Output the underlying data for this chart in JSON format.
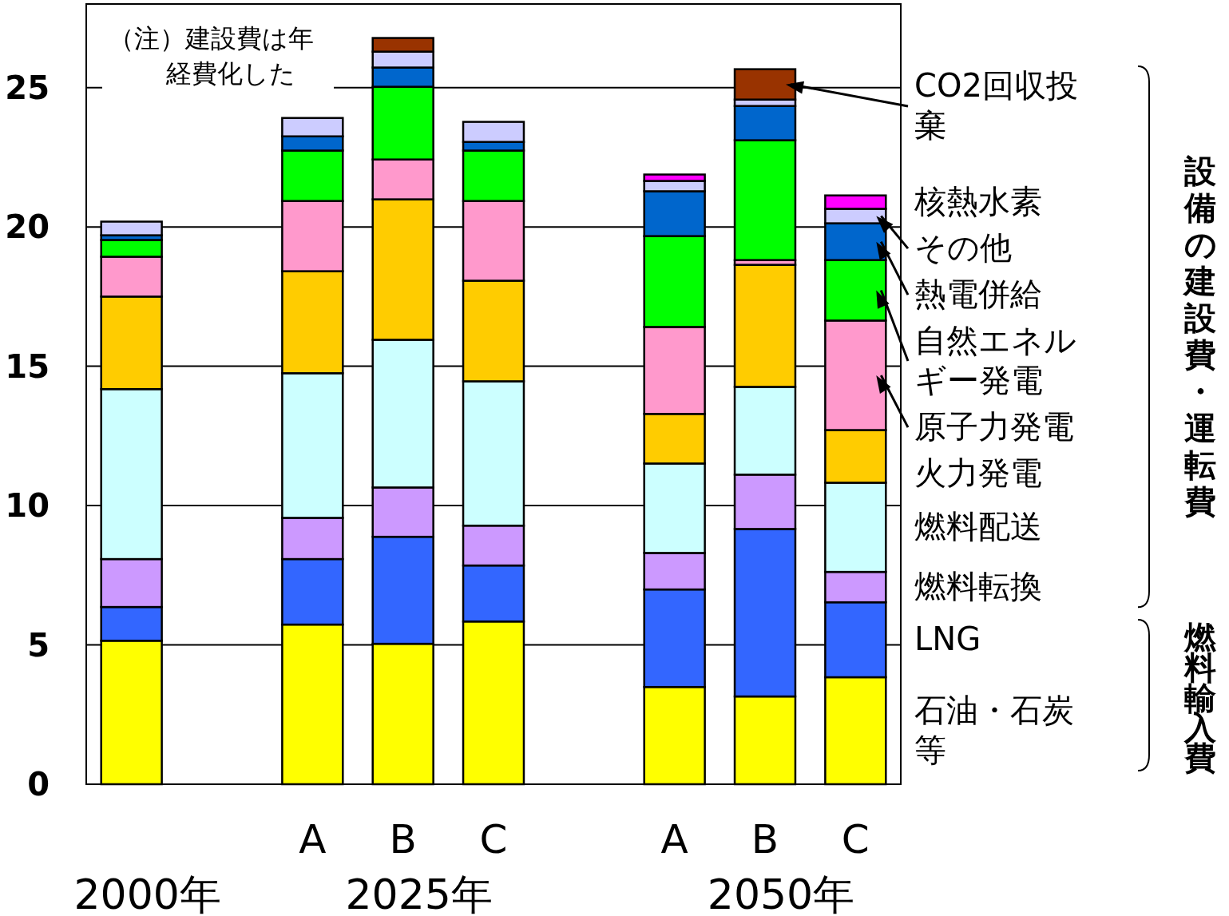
{
  "chart_data": {
    "type": "bar",
    "stacked": true,
    "categories": [
      null,
      null,
      "A",
      "B",
      "C",
      null,
      "A",
      "B",
      "C"
    ],
    "ylim": [
      0,
      28
    ],
    "yticks": [
      0,
      5,
      10,
      15,
      20,
      25
    ],
    "grid": "y",
    "legend": "right",
    "annotations": [
      "2000年",
      "2025年",
      "2050年",
      "（注）建設費は年経費化した",
      "設備の建設費・運転費",
      "燃料輸入費"
    ],
    "series": [
      {
        "name": "石油・石炭等",
        "color": "#ffff00",
        "values": [
          5.15,
          null,
          5.73,
          5.04,
          5.84,
          null,
          3.49,
          3.15,
          3.84
        ]
      },
      {
        "name": "LNG",
        "color": "#3366ff",
        "values": [
          1.21,
          null,
          2.35,
          3.84,
          2.01,
          null,
          3.5,
          6.01,
          2.69
        ]
      },
      {
        "name": "燃料転換",
        "color": "#cc99ff",
        "values": [
          1.72,
          null,
          1.48,
          1.77,
          1.43,
          null,
          1.31,
          1.95,
          1.09
        ]
      },
      {
        "name": "燃料配送",
        "color": "#ccffff",
        "values": [
          6.1,
          null,
          5.19,
          5.3,
          5.18,
          null,
          3.21,
          3.15,
          3.2
        ]
      },
      {
        "name": "火力発電",
        "color": "#ffcc00",
        "values": [
          3.32,
          null,
          3.66,
          5.04,
          3.61,
          null,
          1.78,
          4.38,
          1.89
        ]
      },
      {
        "name": "原子力発電",
        "color": "#ff99cc",
        "values": [
          1.43,
          null,
          2.52,
          1.43,
          2.86,
          null,
          3.12,
          0.17,
          3.93
        ]
      },
      {
        "name": "自然エネルギー発電",
        "color": "#00ff00",
        "values": [
          0.6,
          null,
          1.81,
          2.61,
          1.81,
          null,
          3.26,
          4.3,
          2.17
        ]
      },
      {
        "name": "熱電併給",
        "color": "#0066cc",
        "values": [
          0.17,
          null,
          0.51,
          0.69,
          0.31,
          null,
          1.61,
          1.23,
          1.32
        ]
      },
      {
        "name": "その他",
        "color": "#ccccff",
        "values": [
          0.49,
          null,
          0.66,
          0.57,
          0.72,
          null,
          0.37,
          0.23,
          0.52
        ]
      },
      {
        "name": "核熱水素",
        "color": "#ff00ff",
        "values": [
          null,
          null,
          null,
          null,
          null,
          null,
          0.23,
          null,
          0.48
        ]
      },
      {
        "name": "CO2回収投棄",
        "color": "#993300",
        "values": [
          null,
          null,
          null,
          0.49,
          null,
          null,
          null,
          1.09,
          null
        ]
      }
    ]
  }
}
